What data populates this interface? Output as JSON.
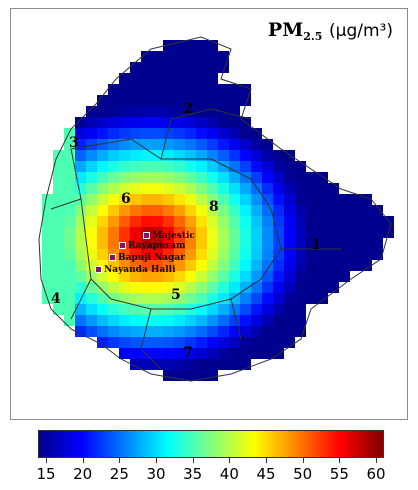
{
  "map": {
    "title_main": "PM",
    "title_sub": "2.5",
    "title_unit": "(µg/m³)",
    "zones": [
      "1",
      "2",
      "3",
      "4",
      "5",
      "6",
      "7",
      "8"
    ],
    "stations": [
      "Majestic",
      "Rayapuram",
      "Bapuji Nagar",
      "Nayanda Halli"
    ]
  },
  "colorbar": {
    "ticks": [
      "15",
      "20",
      "25",
      "30",
      "35",
      "40",
      "45",
      "50",
      "55",
      "60"
    ],
    "min": 15,
    "max": 60,
    "colors": [
      "#00008f",
      "#0000ff",
      "#0080ff",
      "#00ffff",
      "#80ff80",
      "#ffff00",
      "#ff8000",
      "#ff0000",
      "#800000"
    ]
  }
}
